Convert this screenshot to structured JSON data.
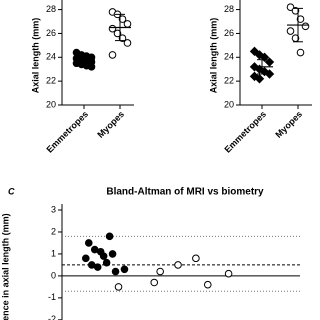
{
  "chart_data": [
    {
      "type": "dot",
      "ylabel": "Axial length (mm)",
      "ylim": [
        20,
        28.3
      ],
      "yticks": [
        20,
        22,
        24,
        26,
        28
      ],
      "series": [
        {
          "name": "Emmetropes",
          "color": "#000000",
          "filled": true,
          "marker": "circle",
          "values": [
            24.4,
            24.2,
            24.1,
            24.0,
            23.9,
            23.8,
            23.7,
            23.6,
            23.5,
            23.4,
            23.3,
            23.2
          ],
          "mean": 23.8,
          "sd": 0.4
        },
        {
          "name": "Myopes",
          "color": "#000000",
          "filled": false,
          "marker": "circle",
          "values": [
            27.8,
            27.6,
            27.2,
            26.8,
            26.4,
            26.0,
            25.6,
            25.2,
            24.2
          ],
          "mean": 26.5,
          "sd": 1.1
        }
      ]
    },
    {
      "type": "dot",
      "ylabel": "Axial length (mm)",
      "ylim": [
        20,
        28.3
      ],
      "yticks": [
        20,
        22,
        24,
        26,
        28
      ],
      "series": [
        {
          "name": "Emmetropes",
          "color": "#000000",
          "filled": true,
          "marker": "diamond",
          "values": [
            24.5,
            24.2,
            24.0,
            23.6,
            23.2,
            23.0,
            22.8,
            22.6,
            22.4,
            22.2
          ],
          "mean": 23.2,
          "sd": 0.6
        },
        {
          "name": "Myopes",
          "color": "#000000",
          "filled": false,
          "marker": "circle",
          "values": [
            28.2,
            27.9,
            27.2,
            26.6,
            26.2,
            25.6,
            24.4
          ],
          "mean": 26.7,
          "sd": 1.4
        }
      ]
    },
    {
      "type": "scatter",
      "panel_label": "C",
      "title": "Bland-Altman of MRI vs biometry",
      "ylabel": "ence in axial length (mm)",
      "xlim": [
        22,
        30
      ],
      "ylim": [
        -2.2,
        3
      ],
      "yticks": [
        -2,
        -1,
        0,
        1,
        2,
        3
      ],
      "bias": 0.5,
      "loa": [
        -0.7,
        1.8
      ],
      "series": [
        {
          "name": "Emmetropes",
          "color": "#000000",
          "filled": true,
          "x": [
            22.8,
            22.9,
            23.0,
            23.1,
            23.2,
            23.3,
            23.4,
            23.5,
            23.6,
            23.7,
            23.8,
            24.1
          ],
          "values": [
            0.8,
            1.5,
            0.5,
            1.2,
            0.4,
            1.1,
            0.9,
            0.6,
            1.8,
            1.0,
            0.2,
            0.3
          ]
        },
        {
          "name": "Myopes",
          "color": "#000000",
          "filled": false,
          "x": [
            23.9,
            25.1,
            25.3,
            25.9,
            26.5,
            26.9,
            27.6
          ],
          "values": [
            -0.5,
            -0.3,
            0.2,
            0.5,
            0.8,
            -0.4,
            0.1
          ]
        }
      ]
    }
  ]
}
